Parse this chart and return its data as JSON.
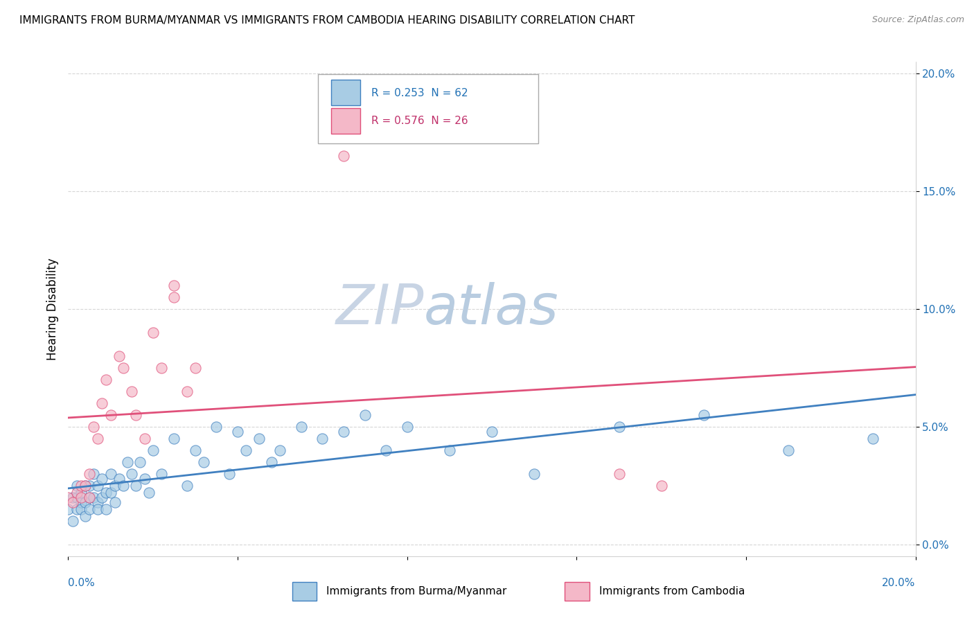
{
  "title": "IMMIGRANTS FROM BURMA/MYANMAR VS IMMIGRANTS FROM CAMBODIA HEARING DISABILITY CORRELATION CHART",
  "source": "Source: ZipAtlas.com",
  "ylabel": "Hearing Disability",
  "legend_entry1": "R = 0.253  N = 62",
  "legend_entry2": "R = 0.576  N = 26",
  "legend_label1": "Immigrants from Burma/Myanmar",
  "legend_label2": "Immigrants from Cambodia",
  "color_blue": "#a8cce4",
  "color_pink": "#f4b8c8",
  "color_blue_line": "#4080c0",
  "color_pink_line": "#e0507a",
  "color_blue_text": "#2171b5",
  "color_pink_text": "#c0306a",
  "watermark_color": "#dde5f0",
  "xlim": [
    0.0,
    0.2
  ],
  "ylim": [
    -0.005,
    0.205
  ],
  "yticks": [
    0.0,
    0.05,
    0.1,
    0.15,
    0.2
  ],
  "ytick_labels": [
    "0.0%",
    "5.0%",
    "10.0%",
    "15.0%",
    "20.0%"
  ],
  "blue_points_x": [
    0.0,
    0.001,
    0.001,
    0.002,
    0.002,
    0.002,
    0.003,
    0.003,
    0.003,
    0.004,
    0.004,
    0.004,
    0.005,
    0.005,
    0.005,
    0.006,
    0.006,
    0.007,
    0.007,
    0.007,
    0.008,
    0.008,
    0.009,
    0.009,
    0.01,
    0.01,
    0.011,
    0.011,
    0.012,
    0.013,
    0.014,
    0.015,
    0.016,
    0.017,
    0.018,
    0.019,
    0.02,
    0.022,
    0.025,
    0.028,
    0.03,
    0.032,
    0.035,
    0.038,
    0.04,
    0.042,
    0.045,
    0.048,
    0.05,
    0.055,
    0.06,
    0.065,
    0.07,
    0.075,
    0.08,
    0.09,
    0.1,
    0.11,
    0.13,
    0.15,
    0.17,
    0.19
  ],
  "blue_points_y": [
    0.015,
    0.02,
    0.01,
    0.025,
    0.015,
    0.02,
    0.018,
    0.022,
    0.015,
    0.025,
    0.018,
    0.012,
    0.02,
    0.025,
    0.015,
    0.03,
    0.02,
    0.025,
    0.018,
    0.015,
    0.028,
    0.02,
    0.022,
    0.015,
    0.03,
    0.022,
    0.025,
    0.018,
    0.028,
    0.025,
    0.035,
    0.03,
    0.025,
    0.035,
    0.028,
    0.022,
    0.04,
    0.03,
    0.045,
    0.025,
    0.04,
    0.035,
    0.05,
    0.03,
    0.048,
    0.04,
    0.045,
    0.035,
    0.04,
    0.05,
    0.045,
    0.048,
    0.055,
    0.04,
    0.05,
    0.04,
    0.048,
    0.03,
    0.05,
    0.055,
    0.04,
    0.045
  ],
  "pink_points_x": [
    0.0,
    0.001,
    0.002,
    0.003,
    0.003,
    0.004,
    0.005,
    0.005,
    0.006,
    0.007,
    0.008,
    0.009,
    0.01,
    0.012,
    0.013,
    0.015,
    0.016,
    0.018,
    0.02,
    0.022,
    0.025,
    0.025,
    0.028,
    0.03,
    0.13,
    0.14
  ],
  "pink_points_y": [
    0.02,
    0.018,
    0.022,
    0.02,
    0.025,
    0.025,
    0.03,
    0.02,
    0.05,
    0.045,
    0.06,
    0.07,
    0.055,
    0.08,
    0.075,
    0.065,
    0.055,
    0.045,
    0.09,
    0.075,
    0.105,
    0.11,
    0.065,
    0.075,
    0.03,
    0.025
  ],
  "pink_outlier_x": [
    0.065
  ],
  "pink_outlier_y": [
    0.165
  ]
}
